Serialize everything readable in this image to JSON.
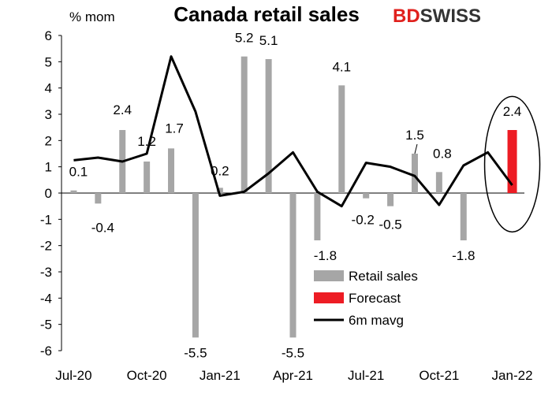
{
  "logo": {
    "part1": "BD",
    "part2": "SWISS"
  },
  "chart_data": {
    "type": "bar",
    "title": "Canada retail sales",
    "ylabel": "% mom",
    "ylim": [
      -6,
      6
    ],
    "yticks": [
      6,
      5,
      4,
      3,
      2,
      1,
      0,
      -1,
      -2,
      -3,
      -4,
      -5,
      -6
    ],
    "x_tick_labels": [
      "Jul-20",
      "Oct-20",
      "Jan-21",
      "Apr-21",
      "Jul-21",
      "Oct-21",
      "Jan-22"
    ],
    "categories": [
      "Jul-20",
      "Aug-20",
      "Sep-20",
      "Oct-20",
      "Nov-20",
      "Dec-20",
      "Jan-21",
      "Feb-21",
      "Mar-21",
      "Apr-21",
      "May-21",
      "Jun-21",
      "Jul-21",
      "Aug-21",
      "Sep-21",
      "Oct-21",
      "Nov-21",
      "Dec-21",
      "Jan-22"
    ],
    "series": [
      {
        "name": "Retail sales",
        "type": "bar",
        "color": "#a6a6a6",
        "values": [
          0.1,
          -0.4,
          2.4,
          1.2,
          1.7,
          -5.5,
          0.2,
          5.2,
          5.1,
          -5.5,
          -1.8,
          4.1,
          -0.2,
          -0.5,
          1.5,
          0.8,
          -1.8,
          null,
          null
        ]
      },
      {
        "name": "Forecast",
        "type": "bar",
        "color": "#ed1c24",
        "values": [
          null,
          null,
          null,
          null,
          null,
          null,
          null,
          null,
          null,
          null,
          null,
          null,
          null,
          null,
          null,
          null,
          null,
          null,
          2.4
        ]
      },
      {
        "name": "6m mavg",
        "type": "line",
        "color": "#000000",
        "values": [
          1.25,
          1.35,
          1.2,
          1.5,
          5.2,
          3.1,
          -0.1,
          0.05,
          0.75,
          1.55,
          0.05,
          -0.5,
          1.15,
          1.0,
          0.65,
          -0.45,
          1.05,
          1.55,
          0.3
        ]
      }
    ],
    "data_labels": [
      "0.1",
      "-0.4",
      "2.4",
      "1.2",
      "1.7",
      "-5.5",
      "0.2",
      "5.2",
      "5.1",
      "-5.5",
      "-1.8",
      "4.1",
      "-0.2",
      "-0.5",
      "1.5",
      "0.8",
      "-1.8",
      "2.4"
    ],
    "legend_position": "bottom-right",
    "annotation": "ellipse around the forecast bar"
  }
}
